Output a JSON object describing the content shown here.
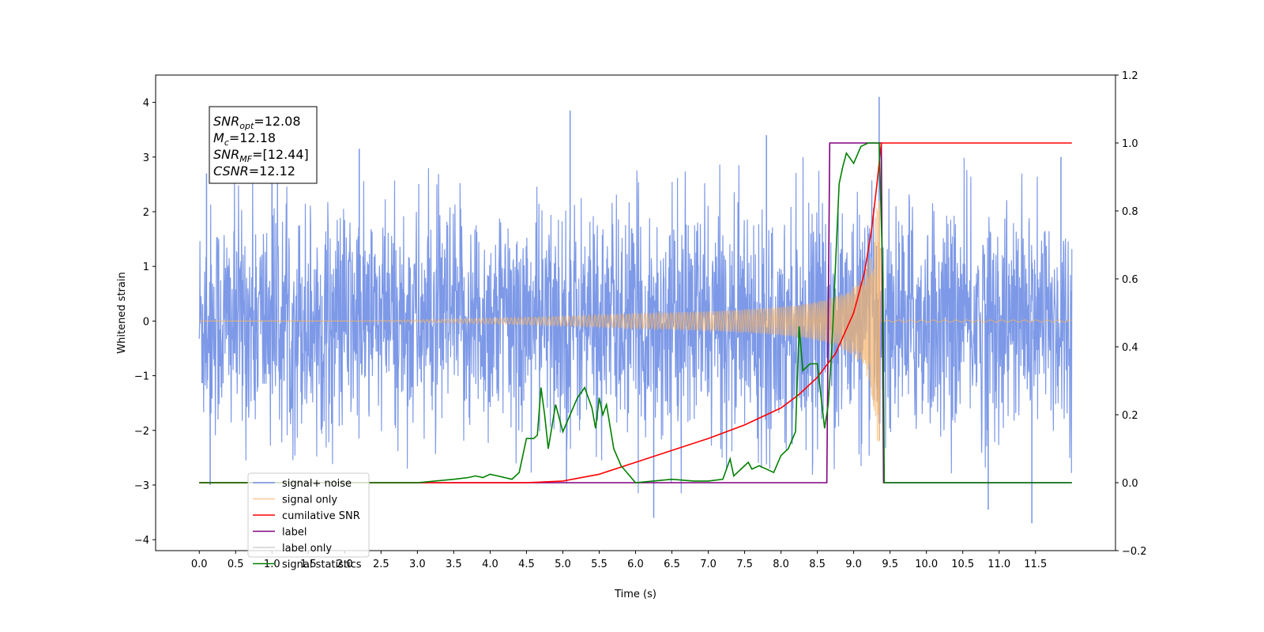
{
  "chart_data": {
    "type": "line",
    "xlabel": "Time (s)",
    "ylabel": "Whitened strain",
    "xlim": [
      -0.6,
      12.6
    ],
    "ylim": [
      -4.2,
      4.5
    ],
    "ylim_right": [
      -0.2,
      1.2
    ],
    "x_ticks": [
      0.0,
      0.5,
      1.0,
      1.5,
      2.0,
      2.5,
      3.0,
      3.5,
      4.0,
      4.5,
      5.0,
      5.5,
      6.0,
      6.5,
      7.0,
      7.5,
      8.0,
      8.5,
      9.0,
      9.5,
      10.0,
      10.5,
      11.0,
      11.5
    ],
    "x_tick_labels": [
      "0.0",
      "0.5",
      "1.0",
      "1.5",
      "2.0",
      "2.5",
      "3.0",
      "3.5",
      "4.0",
      "4.5",
      "5.0",
      "5.5",
      "6.0",
      "6.5",
      "7.0",
      "7.5",
      "8.0",
      "8.5",
      "9.0",
      "9.5",
      "10.0",
      "10.5",
      "11.0",
      "11.5"
    ],
    "y_ticks": [
      -4,
      -3,
      -2,
      -1,
      0,
      1,
      2,
      3,
      4
    ],
    "y_tick_labels": [
      "−4",
      "−3",
      "−2",
      "−1",
      "0",
      "1",
      "2",
      "3",
      "4"
    ],
    "y_right_ticks": [
      -0.2,
      0.0,
      0.2,
      0.4,
      0.6,
      0.8,
      1.0,
      1.2
    ],
    "y_right_tick_labels": [
      "−0.2",
      "0.0",
      "0.2",
      "0.4",
      "0.6",
      "0.8",
      "1.0",
      "1.2"
    ],
    "grid": false,
    "legend_position": "lower-left",
    "annotation": {
      "lines": [
        {
          "sym": "SNR",
          "sub": "opt",
          "val": "=12.08"
        },
        {
          "sym": "M",
          "sub": "c",
          "val": "=12.18"
        },
        {
          "sym": "SNR",
          "sub": "MF",
          "val": "=[12.44]"
        },
        {
          "sym": "CSNR",
          "sub": "",
          "val": "=12.12"
        }
      ]
    },
    "series": [
      {
        "name": "signal+ noise",
        "color": "#7694e6",
        "axis": "left",
        "style": "noise",
        "x_range": [
          0.0,
          12.0
        ],
        "amplitude_envelope": [
          2.4,
          3.3
        ],
        "spikes": [
          [
            0.1,
            2.7
          ],
          [
            0.15,
            -3.0
          ],
          [
            1.0,
            3.1
          ],
          [
            2.2,
            3.15
          ],
          [
            5.1,
            3.85
          ],
          [
            5.05,
            -2.95
          ],
          [
            6.25,
            -3.6
          ],
          [
            7.8,
            3.4
          ],
          [
            9.35,
            4.1
          ],
          [
            10.85,
            -3.45
          ],
          [
            11.45,
            -3.7
          ],
          [
            11.85,
            3.0
          ]
        ]
      },
      {
        "name": "signal only",
        "color": "#f5b36a",
        "axis": "left",
        "style": "chirp",
        "x_range": [
          0.0,
          12.0
        ],
        "merger_time": 9.38,
        "peak_amplitude": 2.2
      },
      {
        "name": "cumilative SNR",
        "color": "#ff0000",
        "axis": "right",
        "x": [
          0.0,
          3.0,
          4.0,
          4.5,
          5.0,
          5.5,
          6.0,
          6.5,
          7.0,
          7.5,
          8.0,
          8.25,
          8.5,
          8.75,
          9.0,
          9.15,
          9.25,
          9.32,
          9.38,
          9.4,
          12.0
        ],
        "y": [
          0.0,
          0.0,
          0.0,
          0.0,
          0.005,
          0.025,
          0.06,
          0.095,
          0.13,
          0.17,
          0.22,
          0.26,
          0.31,
          0.38,
          0.5,
          0.62,
          0.75,
          0.88,
          1.0,
          1.0,
          1.0
        ]
      },
      {
        "name": "label",
        "color": "#800080",
        "axis": "right",
        "x": [
          0.0,
          8.63,
          8.67,
          9.38,
          9.41,
          12.0
        ],
        "y": [
          0.0,
          0.0,
          1.0,
          1.0,
          0.0,
          0.0
        ]
      },
      {
        "name": "label only",
        "color": "#d0d0d0",
        "axis": "right",
        "x": [],
        "y": []
      },
      {
        "name": "signal statistics",
        "color": "#008000",
        "axis": "right",
        "x": [
          0.0,
          3.0,
          3.5,
          3.7,
          3.8,
          3.9,
          4.0,
          4.1,
          4.2,
          4.3,
          4.4,
          4.5,
          4.6,
          4.65,
          4.7,
          4.75,
          4.8,
          4.9,
          5.0,
          5.1,
          5.2,
          5.3,
          5.4,
          5.45,
          5.5,
          5.55,
          5.6,
          5.7,
          5.8,
          6.0,
          6.5,
          6.8,
          7.0,
          7.2,
          7.3,
          7.35,
          7.4,
          7.5,
          7.55,
          7.6,
          7.7,
          7.8,
          7.9,
          8.0,
          8.1,
          8.2,
          8.25,
          8.3,
          8.4,
          8.5,
          8.6,
          8.65,
          8.7,
          8.8,
          8.85,
          8.9,
          9.0,
          9.1,
          9.2,
          9.3,
          9.35,
          9.4,
          9.42,
          12.0
        ],
        "y": [
          0.0,
          0.0,
          0.01,
          0.015,
          0.02,
          0.015,
          0.025,
          0.02,
          0.015,
          0.01,
          0.03,
          0.13,
          0.13,
          0.14,
          0.28,
          0.2,
          0.1,
          0.23,
          0.15,
          0.2,
          0.25,
          0.28,
          0.22,
          0.16,
          0.25,
          0.2,
          0.23,
          0.1,
          0.05,
          0.0,
          0.01,
          0.005,
          0.005,
          0.01,
          0.07,
          0.02,
          0.03,
          0.05,
          0.06,
          0.04,
          0.05,
          0.04,
          0.03,
          0.08,
          0.1,
          0.15,
          0.46,
          0.33,
          0.35,
          0.35,
          0.16,
          0.23,
          0.4,
          0.88,
          0.93,
          0.97,
          0.94,
          0.99,
          1.0,
          1.0,
          1.0,
          0.6,
          0.0,
          0.0
        ]
      }
    ]
  }
}
